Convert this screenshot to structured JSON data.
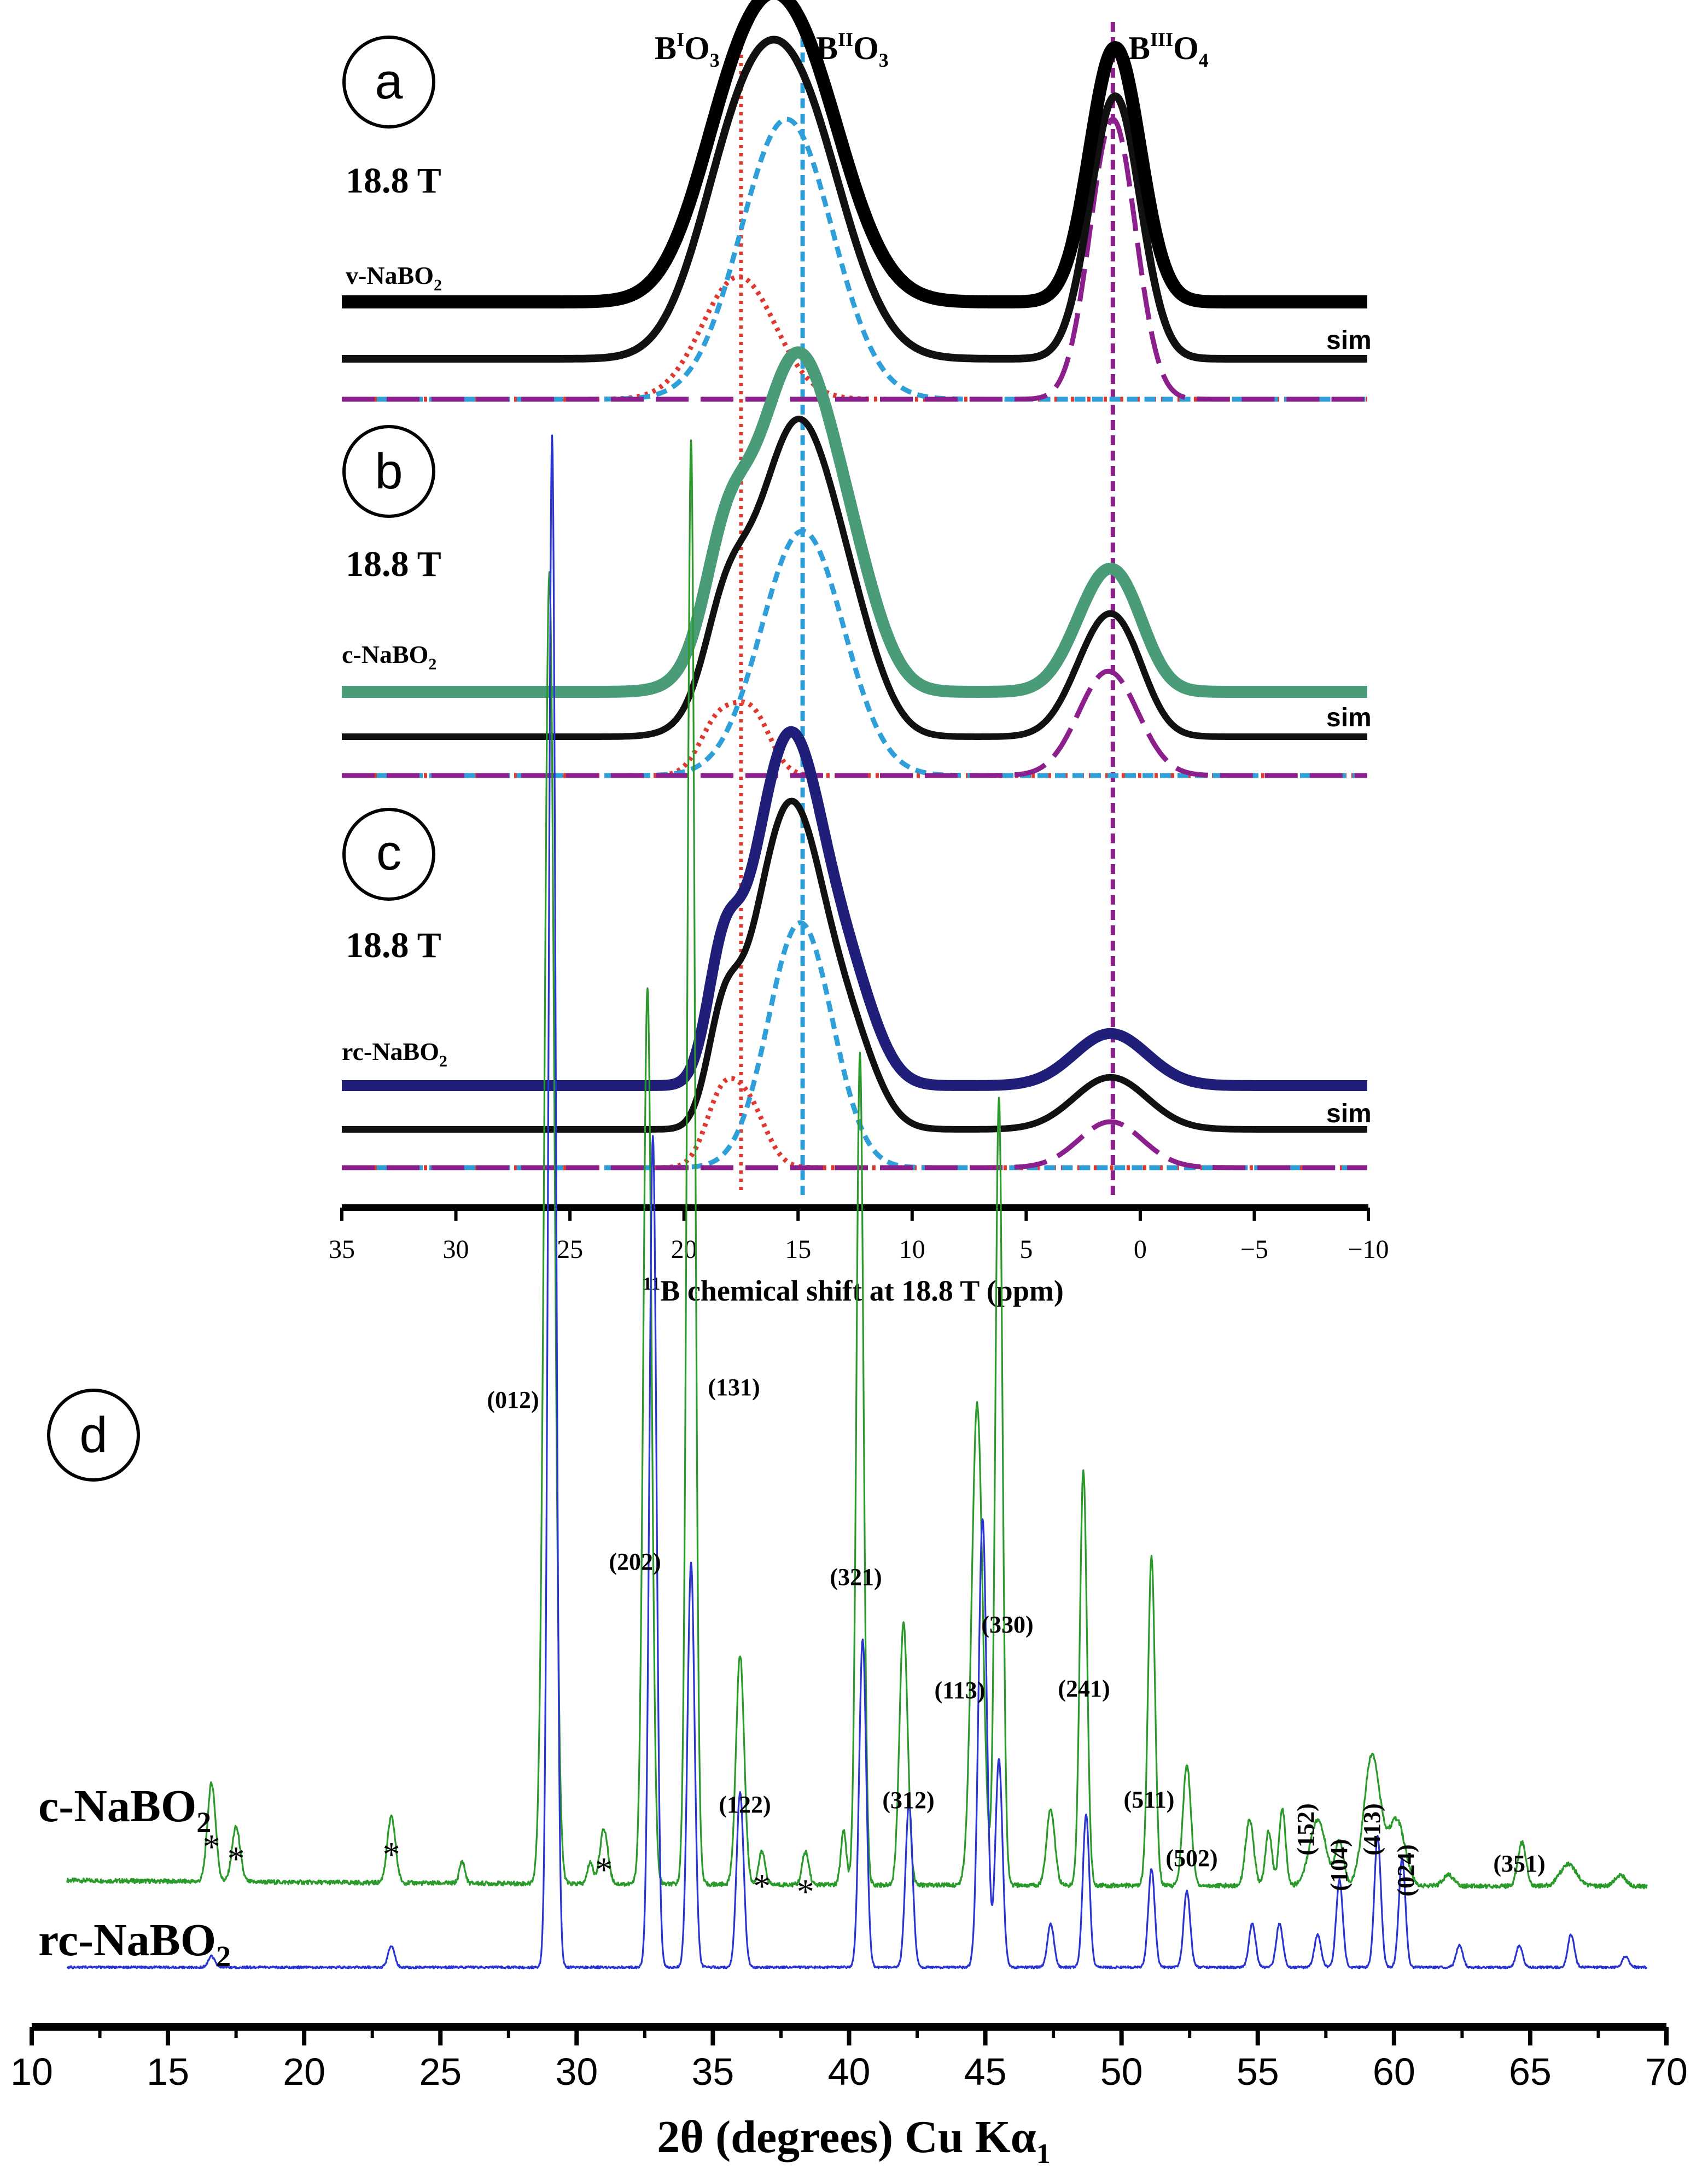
{
  "chart_data": [
    {
      "type": "line",
      "panels": [
        {
          "label": "a",
          "field": "18.8 T",
          "sample": "v-NaBO",
          "sample_sub": "2",
          "sim_label": "sim",
          "exp_color": "#000000",
          "exp_peaks": [
            [
              17.8,
              1.8,
              0.42
            ],
            [
              15.1,
              2.1,
              0.72
            ],
            [
              1.1,
              1.1,
              0.75
            ]
          ],
          "sim_peaks": [
            [
              17.8,
              1.8,
              0.42
            ],
            [
              15.1,
              2.1,
              0.72
            ],
            [
              1.1,
              1.1,
              0.75
            ]
          ],
          "comp1": [
            [
              17.6,
              1.6,
              0.35
            ]
          ],
          "comp2": [
            [
              15.5,
              2.0,
              0.8
            ]
          ],
          "comp3": [
            [
              1.2,
              1.0,
              0.8
            ]
          ]
        },
        {
          "label": "b",
          "field": "18.8 T",
          "sample": "c-NaBO",
          "sample_sub": "2",
          "sim_label": "sim",
          "exp_color": "#4a9b78",
          "exp_peaks": [
            [
              18.2,
              0.9,
              0.25
            ],
            [
              17.2,
              1.6,
              0.35
            ],
            [
              14.9,
              1.5,
              0.95
            ],
            [
              12.6,
              1.3,
              0.3
            ],
            [
              1.6,
              1.3,
              0.35
            ],
            [
              0.5,
              1.0,
              0.1
            ]
          ],
          "sim_peaks": [
            [
              18.2,
              0.9,
              0.22
            ],
            [
              17.2,
              1.6,
              0.3
            ],
            [
              14.9,
              1.5,
              0.9
            ],
            [
              12.6,
              1.3,
              0.28
            ],
            [
              1.6,
              1.3,
              0.35
            ],
            [
              0.5,
              1.0,
              0.1
            ]
          ],
          "comp1": [
            [
              18.5,
              0.8,
              0.18
            ],
            [
              17.0,
              0.8,
              0.2
            ]
          ],
          "comp2": [
            [
              14.8,
              1.8,
              0.82
            ]
          ],
          "comp3": [
            [
              1.4,
              1.3,
              0.35
            ]
          ]
        },
        {
          "label": "c",
          "field": "18.8 T",
          "sample": "rc-NaBO",
          "sample_sub": "2",
          "sim_label": "sim",
          "exp_color": "#1f1f7a",
          "exp_peaks": [
            [
              18.3,
              0.7,
              0.35
            ],
            [
              16.4,
              1.2,
              0.55
            ],
            [
              14.9,
              1.2,
              0.8
            ],
            [
              12.8,
              1.2,
              0.33
            ],
            [
              1.3,
              1.6,
              0.17
            ]
          ],
          "sim_peaks": [
            [
              18.3,
              0.7,
              0.3
            ],
            [
              16.4,
              1.2,
              0.5
            ],
            [
              14.9,
              1.2,
              0.75
            ],
            [
              12.8,
              1.2,
              0.3
            ],
            [
              1.3,
              1.6,
              0.17
            ]
          ],
          "comp1": [
            [
              18.4,
              0.7,
              0.2
            ],
            [
              17.2,
              0.8,
              0.2
            ]
          ],
          "comp2": [
            [
              14.9,
              1.4,
              0.8
            ]
          ],
          "comp3": [
            [
              1.3,
              1.4,
              0.15
            ]
          ]
        }
      ],
      "site_labels": [
        {
          "main": "B",
          "sup": "I",
          "tail": "O",
          "sub": "3",
          "ppm": 17.5,
          "color": "#e0382e"
        },
        {
          "main": "B",
          "sup": "II",
          "tail": "O",
          "sub": "3",
          "ppm": 14.8,
          "color": "#2e9fd8"
        },
        {
          "main": "B",
          "sup": "III",
          "tail": "O",
          "sub": "4",
          "ppm": 1.2,
          "color": "#8b1f8b"
        }
      ],
      "xlabel_sup": "11",
      "xlabel": "B chemical shift at 18.8 T (ppm)",
      "xlim": [
        35,
        -10
      ],
      "xticks": [
        "35",
        "30",
        "25",
        "20",
        "15",
        "10",
        "5",
        "0",
        "−5",
        "−10"
      ],
      "xtick_values": [
        35,
        30,
        25,
        20,
        15,
        10,
        5,
        0,
        -5,
        -10
      ]
    },
    {
      "type": "line",
      "label": "d",
      "xlabel": "2θ (degrees) Cu Kα",
      "xlabel_sub": "1",
      "xlim": [
        10,
        70
      ],
      "xticks": [
        "10",
        "15",
        "20",
        "25",
        "30",
        "35",
        "40",
        "45",
        "50",
        "55",
        "60",
        "65",
        "70"
      ],
      "xtick_values": [
        10,
        15,
        20,
        25,
        30,
        35,
        40,
        45,
        50,
        55,
        60,
        65,
        70
      ],
      "series": [
        {
          "name": "c-NaBO",
          "name_sub": "2",
          "color": "#2a9a2a",
          "peaks": [
            [
              16.6,
              0.15,
              0.09
            ],
            [
              17.5,
              0.15,
              0.05
            ],
            [
              23.2,
              0.15,
              0.06
            ],
            [
              25.8,
              0.1,
              0.02
            ],
            [
              29.0,
              0.18,
              1.2
            ],
            [
              30.5,
              0.1,
              0.02
            ],
            [
              31.0,
              0.15,
              0.05
            ],
            [
              32.6,
              0.15,
              0.82
            ],
            [
              34.2,
              0.14,
              1.32
            ],
            [
              36.0,
              0.15,
              0.21
            ],
            [
              36.8,
              0.12,
              0.03
            ],
            [
              38.4,
              0.12,
              0.03
            ],
            [
              39.8,
              0.1,
              0.05
            ],
            [
              40.4,
              0.13,
              0.76
            ],
            [
              42.0,
              0.15,
              0.24
            ],
            [
              44.7,
              0.2,
              0.44
            ],
            [
              45.5,
              0.13,
              0.72
            ],
            [
              47.4,
              0.15,
              0.07
            ],
            [
              48.6,
              0.13,
              0.38
            ],
            [
              51.1,
              0.13,
              0.3
            ],
            [
              52.4,
              0.15,
              0.11
            ],
            [
              54.7,
              0.15,
              0.06
            ],
            [
              55.4,
              0.12,
              0.05
            ],
            [
              55.9,
              0.12,
              0.07
            ],
            [
              57.2,
              0.3,
              0.06
            ],
            [
              58.0,
              0.15,
              0.04
            ],
            [
              59.2,
              0.3,
              0.12
            ],
            [
              60.1,
              0.3,
              0.06
            ],
            [
              62.0,
              0.2,
              0.01
            ],
            [
              64.7,
              0.15,
              0.04
            ],
            [
              66.4,
              0.3,
              0.02
            ],
            [
              68.3,
              0.2,
              0.01
            ]
          ]
        },
        {
          "name": "rc-NaBO",
          "name_sub": "2",
          "color": "#2a34d0",
          "peaks": [
            [
              16.6,
              0.12,
              0.01
            ],
            [
              23.2,
              0.12,
              0.02
            ],
            [
              29.1,
              0.13,
              1.4
            ],
            [
              32.8,
              0.13,
              0.76
            ],
            [
              34.2,
              0.13,
              0.37
            ],
            [
              36.0,
              0.13,
              0.16
            ],
            [
              40.5,
              0.13,
              0.3
            ],
            [
              42.2,
              0.13,
              0.15
            ],
            [
              44.9,
              0.15,
              0.41
            ],
            [
              45.5,
              0.13,
              0.19
            ],
            [
              47.4,
              0.12,
              0.04
            ],
            [
              48.7,
              0.12,
              0.14
            ],
            [
              51.1,
              0.12,
              0.09
            ],
            [
              52.4,
              0.12,
              0.07
            ],
            [
              54.8,
              0.12,
              0.04
            ],
            [
              55.8,
              0.12,
              0.04
            ],
            [
              57.2,
              0.12,
              0.03
            ],
            [
              58.0,
              0.12,
              0.08
            ],
            [
              59.4,
              0.12,
              0.12
            ],
            [
              60.3,
              0.12,
              0.1
            ],
            [
              62.4,
              0.12,
              0.02
            ],
            [
              64.6,
              0.12,
              0.02
            ],
            [
              66.5,
              0.12,
              0.03
            ],
            [
              68.5,
              0.12,
              0.01
            ]
          ]
        }
      ],
      "reflections": [
        {
          "text": "(012)",
          "x": 29.0
        },
        {
          "text": "(131)",
          "x": 34.2
        },
        {
          "text": "(202)",
          "x": 32.6
        },
        {
          "text": "(321)",
          "x": 40.4
        },
        {
          "text": "(330)",
          "x": 45.5
        },
        {
          "text": "(113)",
          "x": 44.7
        },
        {
          "text": "(241)",
          "x": 48.6
        },
        {
          "text": "(122)",
          "x": 36.0
        },
        {
          "text": "(312)",
          "x": 42.0
        },
        {
          "text": "(511)",
          "x": 51.1
        },
        {
          "text": "(502)",
          "x": 52.4
        },
        {
          "text": "(152)",
          "x": 57.2
        },
        {
          "text": "(104)",
          "x": 58.0
        },
        {
          "text": "(413)",
          "x": 59.2
        },
        {
          "text": "(024)",
          "x": 60.1
        },
        {
          "text": "(351)",
          "x": 64.7
        }
      ],
      "impurity_marker": "*",
      "impurity_positions": [
        16.6,
        17.5,
        23.2,
        31.0,
        36.8,
        38.4
      ]
    }
  ]
}
